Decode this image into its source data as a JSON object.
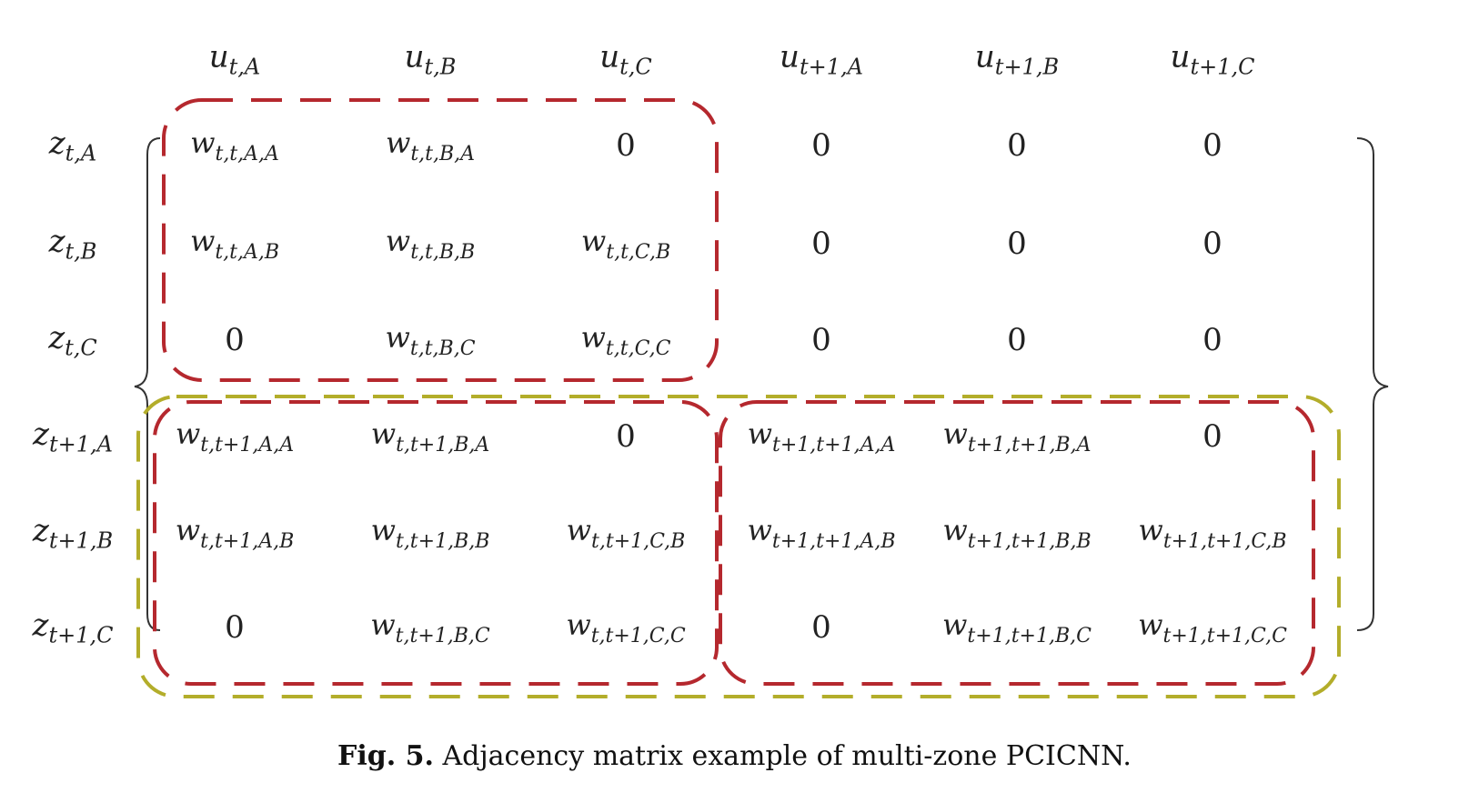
{
  "matrix": {
    "col_headers": [
      {
        "base": "u",
        "sub": "t,A"
      },
      {
        "base": "u",
        "sub": "t,B"
      },
      {
        "base": "u",
        "sub": "t,C"
      },
      {
        "base": "u",
        "sub": "t+1,A"
      },
      {
        "base": "u",
        "sub": "t+1,B"
      },
      {
        "base": "u",
        "sub": "t+1,C"
      }
    ],
    "row_headers": [
      {
        "base": "z",
        "sub": "t,A"
      },
      {
        "base": "z",
        "sub": "t,B"
      },
      {
        "base": "z",
        "sub": "t,C"
      },
      {
        "base": "z",
        "sub": "t+1,A"
      },
      {
        "base": "z",
        "sub": "t+1,B"
      },
      {
        "base": "z",
        "sub": "t+1,C"
      }
    ],
    "cells": [
      [
        {
          "base": "w",
          "sub": "t,t,A,A"
        },
        {
          "base": "w",
          "sub": "t,t,B,A"
        },
        {
          "base": "0",
          "sub": ""
        },
        {
          "base": "0",
          "sub": ""
        },
        {
          "base": "0",
          "sub": ""
        },
        {
          "base": "0",
          "sub": ""
        }
      ],
      [
        {
          "base": "w",
          "sub": "t,t,A,B"
        },
        {
          "base": "w",
          "sub": "t,t,B,B"
        },
        {
          "base": "w",
          "sub": "t,t,C,B"
        },
        {
          "base": "0",
          "sub": ""
        },
        {
          "base": "0",
          "sub": ""
        },
        {
          "base": "0",
          "sub": ""
        }
      ],
      [
        {
          "base": "0",
          "sub": ""
        },
        {
          "base": "w",
          "sub": "t,t,B,C"
        },
        {
          "base": "w",
          "sub": "t,t,C,C"
        },
        {
          "base": "0",
          "sub": ""
        },
        {
          "base": "0",
          "sub": ""
        },
        {
          "base": "0",
          "sub": ""
        }
      ],
      [
        {
          "base": "w",
          "sub": "t,t+1,A,A"
        },
        {
          "base": "w",
          "sub": "t,t+1,B,A"
        },
        {
          "base": "0",
          "sub": ""
        },
        {
          "base": "w",
          "sub": "t+1,t+1,A,A"
        },
        {
          "base": "w",
          "sub": "t+1,t+1,B,A"
        },
        {
          "base": "0",
          "sub": ""
        }
      ],
      [
        {
          "base": "w",
          "sub": "t,t+1,A,B"
        },
        {
          "base": "w",
          "sub": "t,t+1,B,B"
        },
        {
          "base": "w",
          "sub": "t,t+1,C,B"
        },
        {
          "base": "w",
          "sub": "t+1,t+1,A,B"
        },
        {
          "base": "w",
          "sub": "t+1,t+1,B,B"
        },
        {
          "base": "w",
          "sub": "t+1,t+1,C,B"
        }
      ],
      [
        {
          "base": "0",
          "sub": ""
        },
        {
          "base": "w",
          "sub": "t,t+1,B,C"
        },
        {
          "base": "w",
          "sub": "t,t+1,C,C"
        },
        {
          "base": "0",
          "sub": ""
        },
        {
          "base": "w",
          "sub": "t+1,t+1,B,C"
        },
        {
          "base": "w",
          "sub": "t+1,t+1,C,C"
        }
      ]
    ],
    "colors": {
      "red_dash": "#b5282e",
      "olive_dash": "#b3ad2a",
      "bracket": "#333333"
    }
  },
  "caption": {
    "label": "Fig. 5.",
    "text": "Adjacency matrix example of multi-zone PCICNN."
  }
}
